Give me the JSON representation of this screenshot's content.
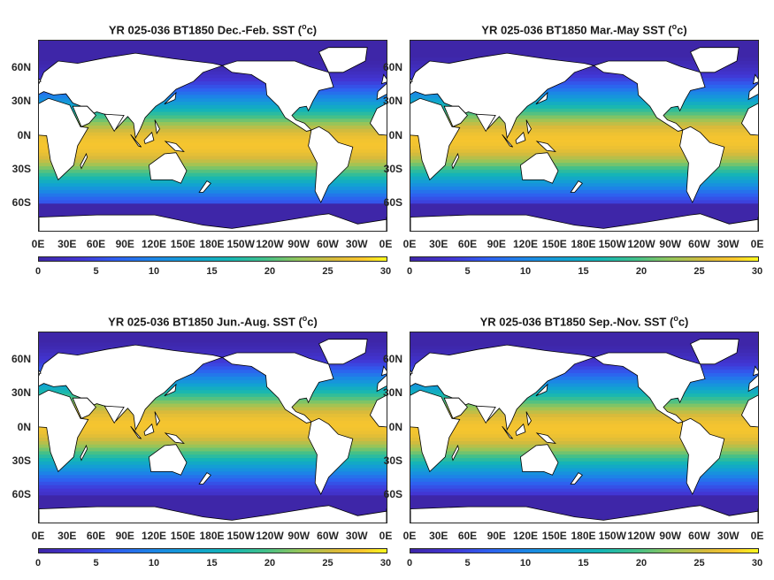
{
  "panels": [
    {
      "title": "YR 025-036 BT1850 Dec.-Feb. SST (",
      "unit_sup": "o",
      "unit_tail": "c)"
    },
    {
      "title": "YR 025-036 BT1850 Mar.-May SST (",
      "unit_sup": "o",
      "unit_tail": "c)"
    },
    {
      "title": "YR 025-036 BT1850 Jun.-Aug. SST (",
      "unit_sup": "o",
      "unit_tail": "c)"
    },
    {
      "title": "YR 025-036 BT1850 Sep.-Nov. SST (",
      "unit_sup": "o",
      "unit_tail": "c)"
    }
  ],
  "lat_labels": [
    "60N",
    "30N",
    "0N",
    "30S",
    "60S"
  ],
  "lon_labels": [
    "0E",
    "30E",
    "60E",
    "90E",
    "120E",
    "150E",
    "180E",
    "150W",
    "120W",
    "90W",
    "60W",
    "30W",
    "0E"
  ],
  "colorbar": {
    "ticks": [
      "0",
      "5",
      "10",
      "15",
      "20",
      "25",
      "30"
    ],
    "min": 0,
    "max": 30
  },
  "colormap": "parula",
  "land_color": "#ffffff"
}
